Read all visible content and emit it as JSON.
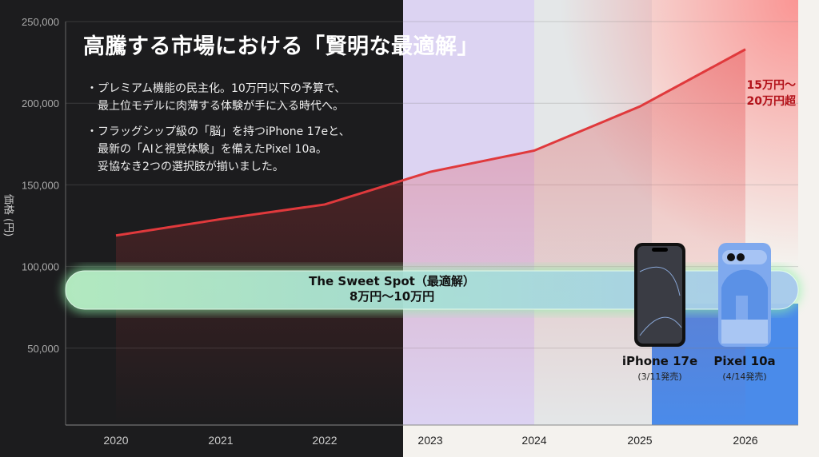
{
  "title": "高騰する市場における「賢明な最適解」",
  "bullets": [
    [
      "・プレミアム機能の民主化。10万円以下の予算で、",
      "最上位モデルに肉薄する体験が手に入る時代へ。"
    ],
    [
      "・フラッグシップ級の「脳」を持つiPhone 17eと、",
      "最新の「AIと視覚体験」を備えたPixel 10a。",
      "妥協なき2つの選択肢が揃いました。"
    ]
  ],
  "sweet_spot": {
    "line1": "The Sweet Spot（最適解）",
    "line2": "8万円〜10万円",
    "range": [
      80000,
      100000
    ]
  },
  "annotation": [
    "15万円〜",
    "20万円超"
  ],
  "phones": [
    {
      "name": "iPhone 17e",
      "date": "(3/11発売)"
    },
    {
      "name": "Pixel 10a",
      "date": "(4/14発売)"
    }
  ],
  "colors": {
    "dark": "#1c1c1e",
    "lavender": "#dcd3f2",
    "gray": "#e4e7e8",
    "blue": "#4a8bea",
    "line": "#e0393c"
  },
  "chart_data": {
    "type": "line",
    "title": "高騰する市場における「賢明な最適解」",
    "xlabel": "",
    "ylabel": "価格 (円)",
    "categories": [
      "2020",
      "2021",
      "2022",
      "2023",
      "2024",
      "2025",
      "2026"
    ],
    "series": [
      {
        "name": "価格",
        "values": [
          119000,
          129000,
          138000,
          158000,
          171000,
          198000,
          233000
        ]
      }
    ],
    "ylim": [
      0,
      250000
    ],
    "yticks": [
      "50,000",
      "100,000",
      "150,000",
      "200,000",
      "250,000"
    ],
    "ytick_values": [
      50000,
      100000,
      150000,
      200000,
      250000
    ],
    "grid": true
  }
}
